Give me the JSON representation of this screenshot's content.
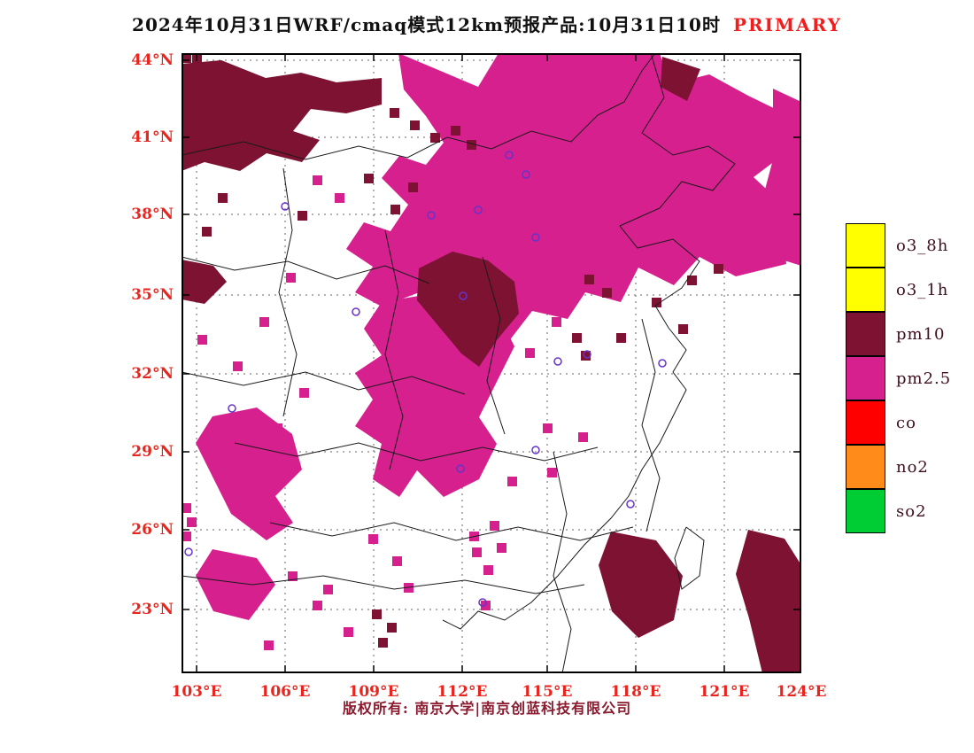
{
  "title": {
    "main": "2024年10月31日WRF/cmaq模式12km预报产品:10月31日10时",
    "highlight": "PRIMARY"
  },
  "footer": {
    "text": "版权所有: 南京大学|南京创蓝科技有限公司"
  },
  "legend": {
    "items": [
      {
        "label": "o3_8h",
        "color": "#ffff00"
      },
      {
        "label": "o3_1h",
        "color": "#ffff00"
      },
      {
        "label": "pm10",
        "color": "#7d1233"
      },
      {
        "label": "pm2.5",
        "color": "#d6208e"
      },
      {
        "label": "co",
        "color": "#ff0000"
      },
      {
        "label": "no2",
        "color": "#ff8c1a"
      },
      {
        "label": "so2",
        "color": "#00cc33"
      }
    ]
  },
  "axes": {
    "lat": [
      "44°N",
      "41°N",
      "38°N",
      "35°N",
      "32°N",
      "29°N",
      "26°N",
      "23°N"
    ],
    "lon": [
      "103°E",
      "106°E",
      "109°E",
      "112°E",
      "115°E",
      "118°E",
      "121°E",
      "124°E"
    ]
  },
  "colors": {
    "pm2.5": "#d6208e",
    "pm10": "#7d1233",
    "grid": "#666666",
    "boundary": "#1a1a1a",
    "marker": "#6633cc",
    "frame": "#000000"
  },
  "map_data": {
    "type": "pollutant-forecast-map",
    "grid": {
      "x": [
        17,
        117,
        217,
        317,
        413,
        513,
        613
      ],
      "y": [
        8,
        95,
        182,
        273,
        362,
        450,
        538,
        628
      ]
    },
    "regions": [
      {
        "pollutant": "pm2.5",
        "points": [
          [
            245,
            0
          ],
          [
            335,
            38
          ],
          [
            358,
            0
          ],
          [
            540,
            0
          ],
          [
            552,
            35
          ],
          [
            596,
            24
          ],
          [
            640,
            48
          ],
          [
            681,
            68
          ],
          [
            683,
            112
          ],
          [
            646,
            140
          ],
          [
            676,
            168
          ],
          [
            683,
            238
          ],
          [
            626,
            252
          ],
          [
            585,
            230
          ],
          [
            556,
            262
          ],
          [
            516,
            242
          ],
          [
            496,
            281
          ],
          [
            456,
            270
          ],
          [
            436,
            300
          ],
          [
            396,
            291
          ],
          [
            366,
            330
          ],
          [
            341,
            371
          ],
          [
            316,
            360
          ],
          [
            326,
            321
          ],
          [
            296,
            300
          ],
          [
            266,
            271
          ],
          [
            226,
            286
          ],
          [
            196,
            270
          ],
          [
            216,
            241
          ],
          [
            186,
            221
          ],
          [
            206,
            191
          ],
          [
            236,
            201
          ],
          [
            256,
            171
          ],
          [
            226,
            141
          ],
          [
            246,
            116
          ],
          [
            276,
            126
          ],
          [
            296,
            101
          ],
          [
            276,
            71
          ],
          [
            251,
            41
          ]
        ]
      },
      {
        "pollutant": "pm2.5",
        "points": [
          [
            226,
            281
          ],
          [
            286,
            271
          ],
          [
            316,
            301
          ],
          [
            356,
            291
          ],
          [
            376,
            331
          ],
          [
            356,
            371
          ],
          [
            336,
            411
          ],
          [
            356,
            441
          ],
          [
            336,
            481
          ],
          [
            296,
            501
          ],
          [
            266,
            471
          ],
          [
            246,
            501
          ],
          [
            216,
            481
          ],
          [
            226,
            441
          ],
          [
            196,
            421
          ],
          [
            216,
            391
          ],
          [
            196,
            361
          ],
          [
            226,
            341
          ],
          [
            206,
            311
          ]
        ]
      },
      {
        "pollutant": "pm2.5",
        "points": [
          [
            35,
            410
          ],
          [
            85,
            400
          ],
          [
            125,
            430
          ],
          [
            136,
            470
          ],
          [
            106,
            500
          ],
          [
            126,
            530
          ],
          [
            96,
            550
          ],
          [
            56,
            520
          ],
          [
            36,
            480
          ],
          [
            16,
            440
          ]
        ]
      },
      {
        "pollutant": "pm2.5",
        "points": [
          [
            35,
            560
          ],
          [
            85,
            570
          ],
          [
            106,
            600
          ],
          [
            76,
            640
          ],
          [
            36,
            630
          ],
          [
            16,
            590
          ]
        ]
      },
      {
        "pollutant": "pm2.5",
        "points": [
          [
            668,
            40
          ],
          [
            700,
            55
          ],
          [
            700,
            240
          ],
          [
            668,
            230
          ],
          [
            652,
            180
          ],
          [
            668,
            120
          ]
        ]
      },
      {
        "pollutant": "pm10",
        "points": [
          [
            0,
            12
          ],
          [
            45,
            8
          ],
          [
            95,
            28
          ],
          [
            135,
            22
          ],
          [
            175,
            33
          ],
          [
            226,
            28
          ],
          [
            226,
            58
          ],
          [
            186,
            68
          ],
          [
            146,
            63
          ],
          [
            126,
            88
          ],
          [
            156,
            98
          ],
          [
            136,
            123
          ],
          [
            96,
            113
          ],
          [
            66,
            133
          ],
          [
            26,
            123
          ],
          [
            0,
            133
          ]
        ]
      },
      {
        "pollutant": "pm10",
        "points": [
          [
            0,
            233
          ],
          [
            36,
            240
          ],
          [
            51,
            258
          ],
          [
            26,
            283
          ],
          [
            0,
            278
          ]
        ]
      },
      {
        "pollutant": "pm10",
        "points": [
          [
            268,
            243
          ],
          [
            306,
            224
          ],
          [
            346,
            234
          ],
          [
            376,
            258
          ],
          [
            381,
            294
          ],
          [
            356,
            324
          ],
          [
            336,
            354
          ],
          [
            316,
            339
          ],
          [
            291,
            309
          ],
          [
            266,
            279
          ]
        ]
      },
      {
        "pollutant": "pm10",
        "points": [
          [
            485,
            540
          ],
          [
            536,
            550
          ],
          [
            566,
            590
          ],
          [
            556,
            640
          ],
          [
            516,
            660
          ],
          [
            486,
            630
          ],
          [
            471,
            578
          ]
        ]
      },
      {
        "pollutant": "pm10",
        "points": [
          [
            640,
            538
          ],
          [
            681,
            548
          ],
          [
            700,
            578
          ],
          [
            700,
            700
          ],
          [
            656,
            700
          ],
          [
            641,
            638
          ],
          [
            626,
            588
          ]
        ]
      },
      {
        "pollutant": "pm10",
        "points": [
          [
            543,
            4
          ],
          [
            586,
            18
          ],
          [
            571,
            54
          ],
          [
            541,
            38
          ]
        ]
      }
    ],
    "pixels": [
      [
        "pm2.5",
        148,
        138
      ],
      [
        "pm2.5",
        173,
        158
      ],
      [
        "pm2.5",
        118,
        248
      ],
      [
        "pm2.5",
        88,
        298
      ],
      [
        "pm2.5",
        298,
        138
      ],
      [
        "pm2.5",
        408,
        418
      ],
      [
        "pm2.5",
        348,
        528
      ],
      [
        "pm2.5",
        328,
        558
      ],
      [
        "pm2.5",
        148,
        618
      ],
      [
        "pm2.5",
        183,
        648
      ],
      [
        "pm2.5",
        93,
        663
      ],
      [
        "pm2.5",
        338,
        618
      ],
      [
        "pm2.5",
        251,
        598
      ],
      [
        "pm2.5",
        368,
        478
      ],
      [
        "pm2.5",
        413,
        468
      ],
      [
        "pm2.5",
        58,
        348
      ],
      [
        "pm2.5",
        18,
        318
      ],
      [
        "pm2.5",
        133,
        378
      ],
      [
        "pm2.5",
        103,
        418
      ],
      [
        "pm2.5",
        325,
        540
      ],
      [
        "pm2.5",
        341,
        578
      ],
      [
        "pm2.5",
        356,
        553
      ],
      [
        "pm2.5",
        0,
        508
      ],
      [
        "pm2.5",
        6,
        524
      ],
      [
        "pm2.5",
        0,
        540
      ],
      [
        "pm2.5",
        388,
        333
      ],
      [
        "pm2.5",
        418,
        298
      ],
      [
        "pm2.5",
        448,
        428
      ],
      [
        "pm2.5",
        211,
        543
      ],
      [
        "pm2.5",
        238,
        568
      ],
      [
        "pm2.5",
        160,
        600
      ],
      [
        "pm2.5",
        120,
        585
      ],
      [
        "pm10",
        236,
        171
      ],
      [
        "pm10",
        256,
        146
      ],
      [
        "pm10",
        41,
        158
      ],
      [
        "pm10",
        23,
        196
      ],
      [
        "pm10",
        131,
        178
      ],
      [
        "pm10",
        206,
        136
      ],
      [
        "pm10",
        451,
        336
      ],
      [
        "pm10",
        491,
        316
      ],
      [
        "pm10",
        441,
        316
      ],
      [
        "pm10",
        531,
        276
      ],
      [
        "pm10",
        561,
        306
      ],
      [
        "pm10",
        215,
        628
      ],
      [
        "pm10",
        232,
        643
      ],
      [
        "pm10",
        222,
        660
      ],
      [
        "pm10",
        601,
        238
      ],
      [
        "pm10",
        571,
        251
      ],
      [
        "pm10",
        235,
        62
      ],
      [
        "pm10",
        258,
        76
      ],
      [
        "pm10",
        281,
        90
      ],
      [
        "pm10",
        304,
        82
      ],
      [
        "pm10",
        322,
        98
      ],
      [
        "pm10",
        0,
        0
      ],
      [
        "pm10",
        12,
        0
      ],
      [
        "pm10",
        455,
        250
      ],
      [
        "pm10",
        475,
        265
      ]
    ],
    "boundaries": [
      [
        [
          530,
          0
        ],
        [
          545,
          50
        ],
        [
          520,
          90
        ],
        [
          555,
          115
        ],
        [
          595,
          105
        ],
        [
          625,
          125
        ],
        [
          600,
          155
        ],
        [
          565,
          145
        ],
        [
          540,
          175
        ],
        [
          495,
          195
        ],
        [
          515,
          220
        ],
        [
          555,
          210
        ],
        [
          585,
          235
        ],
        [
          565,
          265
        ],
        [
          535,
          285
        ],
        [
          550,
          310
        ],
        [
          570,
          335
        ],
        [
          555,
          360
        ],
        [
          570,
          380
        ],
        [
          555,
          410
        ],
        [
          540,
          440
        ],
        [
          520,
          470
        ],
        [
          505,
          500
        ],
        [
          485,
          525
        ],
        [
          455,
          555
        ],
        [
          425,
          590
        ],
        [
          395,
          620
        ],
        [
          365,
          640
        ],
        [
          335,
          630
        ],
        [
          315,
          650
        ],
        [
          295,
          640
        ]
      ],
      [
        [
          0,
          115
        ],
        [
          70,
          100
        ],
        [
          140,
          120
        ],
        [
          200,
          105
        ],
        [
          255,
          118
        ],
        [
          300,
          95
        ],
        [
          350,
          108
        ],
        [
          395,
          88
        ],
        [
          440,
          100
        ],
        [
          470,
          70
        ],
        [
          500,
          55
        ],
        [
          520,
          20
        ],
        [
          535,
          0
        ]
      ],
      [
        [
          0,
          230
        ],
        [
          60,
          245
        ],
        [
          120,
          235
        ],
        [
          175,
          255
        ],
        [
          230,
          240
        ],
        [
          280,
          260
        ]
      ],
      [
        [
          115,
          130
        ],
        [
          125,
          200
        ],
        [
          110,
          270
        ],
        [
          130,
          340
        ],
        [
          115,
          410
        ]
      ],
      [
        [
          230,
          200
        ],
        [
          245,
          270
        ],
        [
          230,
          340
        ],
        [
          250,
          410
        ],
        [
          235,
          470
        ]
      ],
      [
        [
          340,
          230
        ],
        [
          360,
          300
        ],
        [
          345,
          370
        ],
        [
          365,
          430
        ]
      ],
      [
        [
          0,
          360
        ],
        [
          70,
          375
        ],
        [
          140,
          360
        ],
        [
          200,
          380
        ],
        [
          260,
          365
        ],
        [
          320,
          385
        ]
      ],
      [
        [
          60,
          440
        ],
        [
          130,
          455
        ],
        [
          200,
          440
        ],
        [
          270,
          460
        ],
        [
          340,
          445
        ],
        [
          410,
          460
        ],
        [
          470,
          445
        ]
      ],
      [
        [
          100,
          530
        ],
        [
          170,
          545
        ],
        [
          240,
          530
        ],
        [
          310,
          550
        ],
        [
          380,
          535
        ],
        [
          450,
          550
        ],
        [
          510,
          535
        ]
      ],
      [
        [
          0,
          590
        ],
        [
          80,
          600
        ],
        [
          160,
          590
        ],
        [
          240,
          605
        ],
        [
          320,
          595
        ],
        [
          400,
          610
        ],
        [
          455,
          600
        ]
      ],
      [
        [
          420,
          450
        ],
        [
          435,
          520
        ],
        [
          420,
          590
        ],
        [
          440,
          650
        ],
        [
          430,
          700
        ]
      ],
      [
        [
          520,
          300
        ],
        [
          535,
          360
        ],
        [
          520,
          420
        ],
        [
          540,
          480
        ],
        [
          525,
          540
        ]
      ],
      [
        [
          570,
          535
        ],
        [
          590,
          550
        ],
        [
          585,
          590
        ],
        [
          565,
          605
        ],
        [
          557,
          570
        ],
        [
          570,
          535
        ]
      ]
    ],
    "markers": [
      [
        370,
        115
      ],
      [
        389,
        137
      ],
      [
        335,
        177
      ],
      [
        282,
        183
      ],
      [
        400,
        208
      ],
      [
        117,
        173
      ],
      [
        197,
        292
      ],
      [
        318,
        274
      ],
      [
        425,
        348
      ],
      [
        458,
        340
      ],
      [
        543,
        350
      ],
      [
        57,
        401
      ],
      [
        315,
        469
      ],
      [
        400,
        448
      ],
      [
        507,
        509
      ],
      [
        340,
        620
      ],
      [
        8,
        563
      ]
    ]
  }
}
